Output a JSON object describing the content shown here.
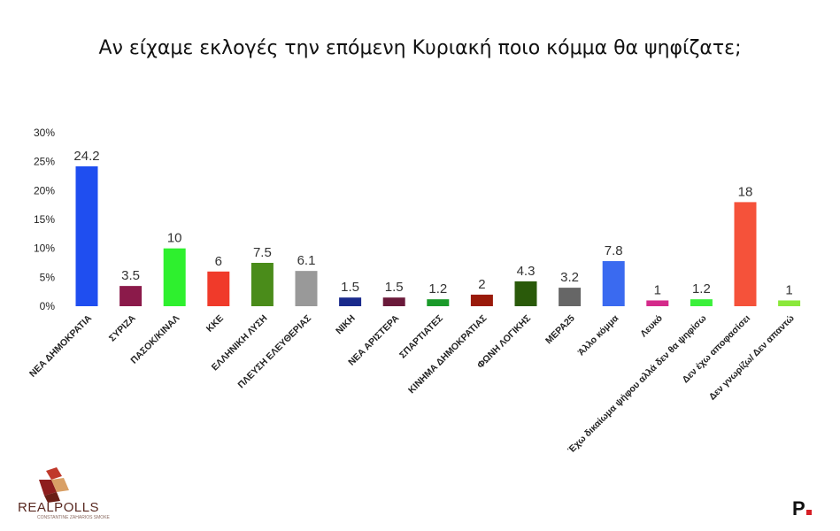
{
  "chart_data": {
    "type": "bar",
    "title": "Αν είχαμε εκλογές την επόμενη Κυριακή ποιο κόμμα θα ψηφίζατε;",
    "ylim": [
      0,
      30
    ],
    "yticks": [
      "0%",
      "5%",
      "10%",
      "15%",
      "20%",
      "25%",
      "30%"
    ],
    "ytick_values": [
      0,
      5,
      10,
      15,
      20,
      25,
      30
    ],
    "grid": false,
    "categories": [
      "ΝΕΑ ΔΗΜΟΚΡΑΤΙΑ",
      "ΣΥΡΙΖΑ",
      "ΠΑΣΟΚ/ΚΙΝΑΛ",
      "ΚΚΕ",
      "ΕΛΛΗΝΙΚΗ ΛΥΣΗ",
      "ΠΛΕΥΣΗ ΕΛΕΥΘΕΡΙΑΣ",
      "ΝΙΚΗ",
      "ΝΕΑ ΑΡΙΣΤΕΡΑ",
      "ΣΠΑΡΤΙΑΤΕΣ",
      "ΚΙΝΗΜΑ ΔΗΜΟΚΡΑΤΙΑΣ",
      "ΦΩΝΗ ΛΟΓΙΚΗΣ",
      "ΜΕΡΑ25",
      "Άλλο κόμμα",
      "Λευκό",
      "Έχω δικαίωμα ψήφου αλλά δεν θα ψηφίσω",
      "Δεν έχω αποφασίσει",
      "Δεν γνωρίζω/ Δεν απαντώ"
    ],
    "values": [
      24.2,
      3.5,
      10,
      6,
      7.5,
      6.1,
      1.5,
      1.5,
      1.2,
      2,
      4.3,
      3.2,
      7.8,
      1,
      1.2,
      18,
      1
    ],
    "value_labels": [
      "24.2",
      "3.5",
      "10",
      "6",
      "7.5",
      "6.1",
      "1.5",
      "1.5",
      "1.2",
      "2",
      "4.3",
      "3.2",
      "7.8",
      "1",
      "1.2",
      "18",
      "1"
    ],
    "colors": [
      "#1f4ef0",
      "#8b1a4a",
      "#2ef02e",
      "#f03a2a",
      "#4a8c1a",
      "#999999",
      "#1a2a8c",
      "#6a1a3a",
      "#1a9a2a",
      "#9a1a0a",
      "#2a5a0a",
      "#666666",
      "#3a6af0",
      "#d42a8a",
      "#3af03a",
      "#f5523a",
      "#8ae83a"
    ]
  },
  "branding": {
    "left_logo": "REALPOLLS",
    "left_tagline": "CONSTANTINE ZAHARIOS SMOKE",
    "right_logo": "P"
  }
}
